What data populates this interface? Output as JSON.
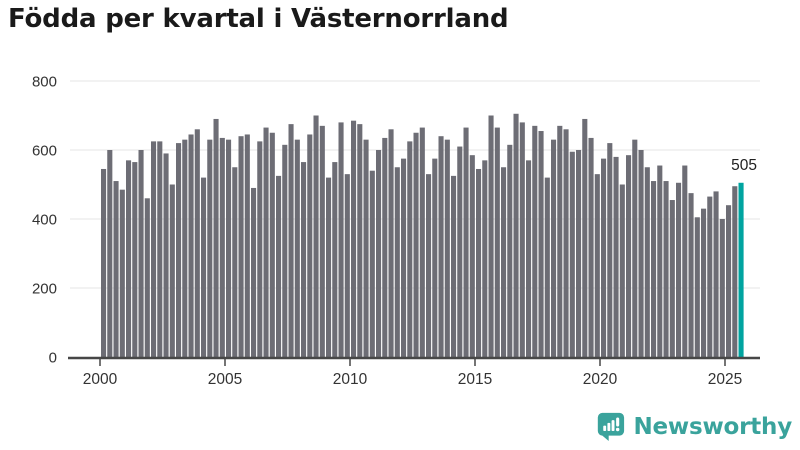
{
  "title": "Födda per kvartal i Västernorrland",
  "branding": {
    "logo_text": "Newsworthy",
    "logo_color": "#3aa39c"
  },
  "chart_data": {
    "type": "bar",
    "title": "Födda per kvartal i Västernorrland",
    "frequency": "quarterly",
    "x_start": "2000Q1",
    "x_end": "2025Q3",
    "ylim": [
      0,
      800
    ],
    "yticks": [
      0,
      200,
      400,
      600,
      800
    ],
    "xticks": [
      2000,
      2005,
      2010,
      2015,
      2020,
      2025
    ],
    "grid": "horizontal",
    "legend": "none",
    "bar_color": "#6d6d75",
    "highlight": {
      "index": 102,
      "label": "505",
      "color": "#00a4a0"
    },
    "categories": [
      "2000Q1",
      "2000Q2",
      "2000Q3",
      "2000Q4",
      "2001Q1",
      "2001Q2",
      "2001Q3",
      "2001Q4",
      "2002Q1",
      "2002Q2",
      "2002Q3",
      "2002Q4",
      "2003Q1",
      "2003Q2",
      "2003Q3",
      "2003Q4",
      "2004Q1",
      "2004Q2",
      "2004Q3",
      "2004Q4",
      "2005Q1",
      "2005Q2",
      "2005Q3",
      "2005Q4",
      "2006Q1",
      "2006Q2",
      "2006Q3",
      "2006Q4",
      "2007Q1",
      "2007Q2",
      "2007Q3",
      "2007Q4",
      "2008Q1",
      "2008Q2",
      "2008Q3",
      "2008Q4",
      "2009Q1",
      "2009Q2",
      "2009Q3",
      "2009Q4",
      "2010Q1",
      "2010Q2",
      "2010Q3",
      "2010Q4",
      "2011Q1",
      "2011Q2",
      "2011Q3",
      "2011Q4",
      "2012Q1",
      "2012Q2",
      "2012Q3",
      "2012Q4",
      "2013Q1",
      "2013Q2",
      "2013Q3",
      "2013Q4",
      "2014Q1",
      "2014Q2",
      "2014Q3",
      "2014Q4",
      "2015Q1",
      "2015Q2",
      "2015Q3",
      "2015Q4",
      "2016Q1",
      "2016Q2",
      "2016Q3",
      "2016Q4",
      "2017Q1",
      "2017Q2",
      "2017Q3",
      "2017Q4",
      "2018Q1",
      "2018Q2",
      "2018Q3",
      "2018Q4",
      "2019Q1",
      "2019Q2",
      "2019Q3",
      "2019Q4",
      "2020Q1",
      "2020Q2",
      "2020Q3",
      "2020Q4",
      "2021Q1",
      "2021Q2",
      "2021Q3",
      "2021Q4",
      "2022Q1",
      "2022Q2",
      "2022Q3",
      "2022Q4",
      "2023Q1",
      "2023Q2",
      "2023Q3",
      "2023Q4",
      "2024Q1",
      "2024Q2",
      "2024Q3",
      "2024Q4",
      "2025Q1",
      "2025Q2",
      "2025Q3"
    ],
    "values": [
      545,
      600,
      510,
      485,
      570,
      565,
      600,
      460,
      625,
      625,
      590,
      500,
      620,
      630,
      645,
      660,
      520,
      630,
      690,
      635,
      630,
      550,
      640,
      645,
      490,
      625,
      665,
      650,
      525,
      615,
      675,
      630,
      565,
      645,
      700,
      670,
      520,
      565,
      680,
      530,
      685,
      675,
      630,
      540,
      600,
      635,
      660,
      550,
      575,
      625,
      650,
      665,
      530,
      575,
      640,
      630,
      525,
      610,
      665,
      585,
      545,
      570,
      700,
      665,
      550,
      615,
      705,
      680,
      570,
      670,
      655,
      520,
      630,
      670,
      660,
      595,
      600,
      690,
      635,
      530,
      575,
      620,
      580,
      500,
      585,
      630,
      600,
      550,
      510,
      555,
      510,
      455,
      505,
      555,
      475,
      405,
      430,
      465,
      480,
      400,
      440,
      495,
      505
    ]
  }
}
